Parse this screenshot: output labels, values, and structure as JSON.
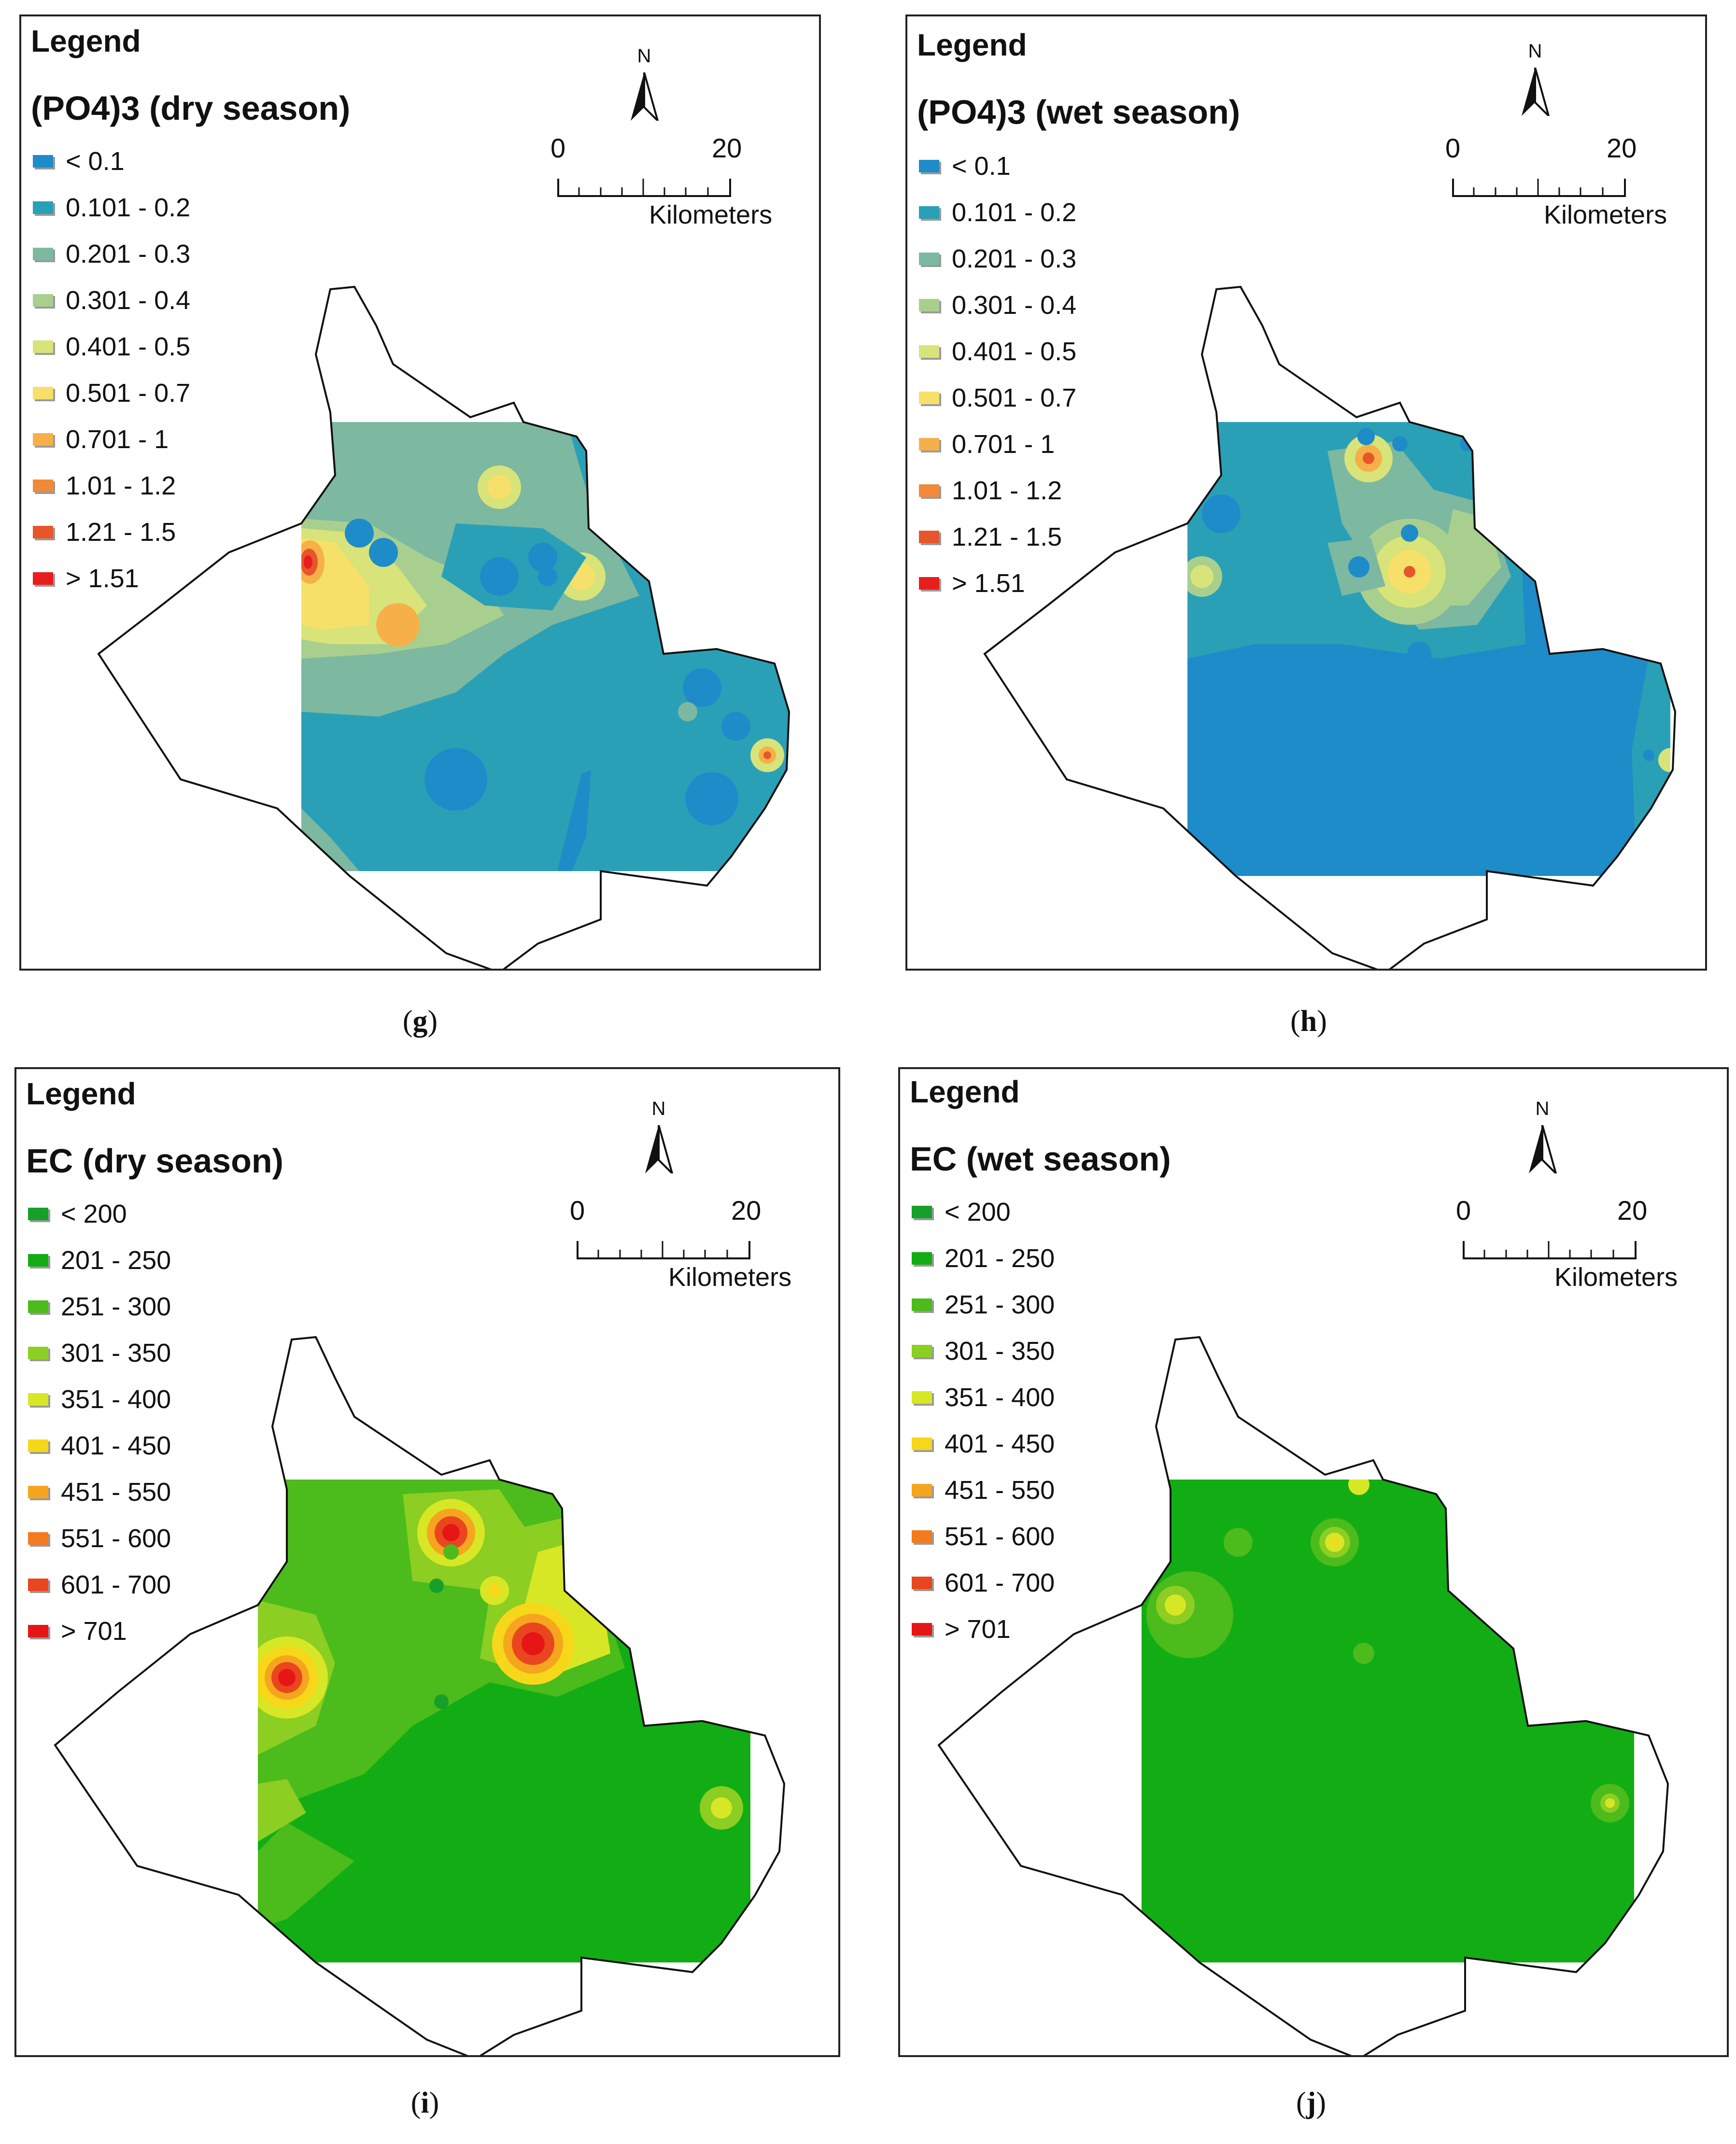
{
  "panels": {
    "g": {
      "legend_heading": "Legend",
      "title": "(PO4)3 (dry season)",
      "classes": [
        "< 0.1",
        "0.101 - 0.2",
        "0.201 - 0.3",
        "0.301 - 0.4",
        "0.401 - 0.5",
        "0.501 - 0.7",
        "0.701 - 1",
        "1.01 - 1.2",
        "1.21 - 1.5",
        "> 1.51"
      ],
      "north_label": "N",
      "scale_start": "0",
      "scale_end": "20",
      "scale_unit": "Kilometers",
      "caption": "g"
    },
    "h": {
      "legend_heading": "Legend",
      "title": "(PO4)3 (wet season)",
      "classes": [
        "< 0.1",
        "0.101 - 0.2",
        "0.201 - 0.3",
        "0.301 - 0.4",
        "0.401 - 0.5",
        "0.501 - 0.7",
        "0.701 - 1",
        "1.01 - 1.2",
        "1.21 - 1.5",
        "> 1.51"
      ],
      "north_label": "N",
      "scale_start": "0",
      "scale_end": "20",
      "scale_unit": "Kilometers",
      "caption": "h"
    },
    "i": {
      "legend_heading": "Legend",
      "title": "EC (dry season)",
      "classes": [
        "< 200",
        "201 - 250",
        "251 - 300",
        "301 - 350",
        "351 - 400",
        "401 - 450",
        "451 - 550",
        "551 - 600",
        "601 - 700",
        "> 701"
      ],
      "north_label": "N",
      "scale_start": "0",
      "scale_end": "20",
      "scale_unit": "Kilometers",
      "caption": "i"
    },
    "j": {
      "legend_heading": "Legend",
      "title": "EC (wet season)",
      "classes": [
        "< 200",
        "201 - 250",
        "251 - 300",
        "301 - 350",
        "351 - 400",
        "401 - 450",
        "451 - 550",
        "551 - 600",
        "601 - 700",
        "> 701"
      ],
      "north_label": "N",
      "scale_start": "0",
      "scale_end": "20",
      "scale_unit": "Kilometers",
      "caption": "j"
    }
  },
  "palettes": {
    "po4": [
      "#1e8cc8",
      "#2aa0b6",
      "#7db8a0",
      "#a9cf8e",
      "#d8e37a",
      "#f7e06a",
      "#f5b04a",
      "#f08a3a",
      "#e6562a",
      "#e81d1d"
    ],
    "ec": [
      "#16a02a",
      "#12ad14",
      "#4cbb1c",
      "#8cce22",
      "#d7e726",
      "#f6d719",
      "#f6a51e",
      "#f37b1e",
      "#e9461f",
      "#e61616"
    ]
  }
}
